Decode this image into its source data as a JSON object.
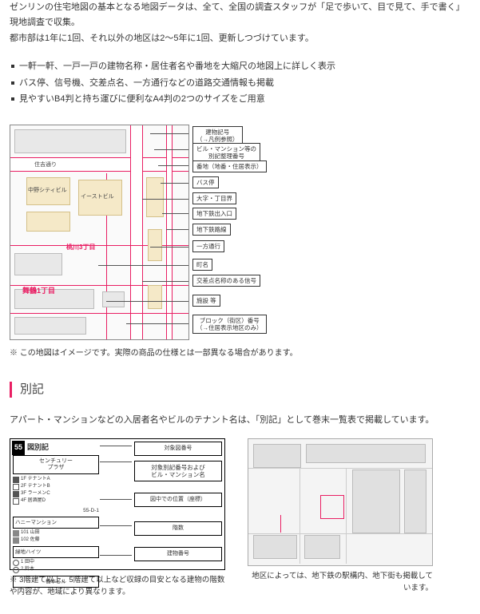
{
  "intro": {
    "line1": "ゼンリンの住宅地図の基本となる地図データは、全て、全国の調査スタッフが「足で歩いて、目で見て、手で書く」現地調査で収集。",
    "line2": "都市部は1年に1回、それ以外の地区は2～5年に1回、更新しつづけています。"
  },
  "features": [
    "一軒一軒、一戸一戸の建物名称・居住者名や番地を大縮尺の地図上に詳しく表示",
    "バス停、信号機、交差点名、一方通行などの道路交通情報も掲載",
    "見やすいB4判と持ち運びに便利なA4判の2つのサイズをご用意"
  ],
  "map": {
    "street1": "住吉通り",
    "place1": "中野シティビル",
    "place2": "イーストビル",
    "area1": "桃川3丁目",
    "area2": "舞鶴1丁目",
    "callouts": [
      "建物記号\n（→凡例参照）",
      "ビル・マンション等の\n別記整理番号",
      "番地（地番・住居表示）",
      "バス停",
      "大字・丁目界",
      "地下鉄出入口",
      "地下鉄路線",
      "一方通行",
      "町名",
      "交差点名称のある信号",
      "施設 等",
      "ブロック（街区）番号\n（→住居表示地区のみ）"
    ],
    "note": "※ この地図はイメージです。実際の商品の仕様とは一部異なる場合があります。"
  },
  "section": {
    "title": "別記",
    "desc": "アパート・マンションなどの入居者名やビルのテナント名は、「別記」として巻末一覧表で掲載しています。"
  },
  "legend": {
    "num": "55",
    "title": "図別記",
    "leftItems": [
      "センチュリー\nプラザ",
      "55-D-1",
      "ハニーマンション",
      "緑地ハイツ",
      "橋本ビル"
    ],
    "rightCallouts": [
      "対象図番号",
      "対象別記番号および\nビル・マンション名",
      "図中での位置（座標）",
      "階数",
      "建物番号"
    ],
    "caption": "※ 3階建て以上、5階建て以上など収録の目安となる建物の階数や内容が、地域により異なります。"
  },
  "station": {
    "caption": "地区によっては、地下鉄の駅構内、地下街も掲載しています。"
  },
  "colors": {
    "accent": "#e91e63",
    "road": "#e91e63",
    "block": "#f5e9c8",
    "text": "#333333"
  }
}
